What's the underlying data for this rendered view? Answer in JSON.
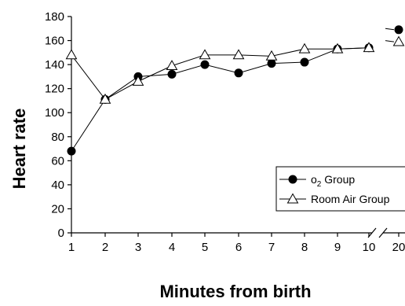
{
  "chart_data": {
    "type": "line",
    "xlabel": "Minutes from birth",
    "ylabel": "Heart rate",
    "x": [
      "1",
      "2",
      "3",
      "4",
      "5",
      "6",
      "7",
      "8",
      "9",
      "10",
      "20"
    ],
    "ylim": [
      0,
      180
    ],
    "yticks": [
      0,
      20,
      40,
      60,
      80,
      100,
      120,
      140,
      160,
      180
    ],
    "axis_break": "between 10 and 20",
    "grid": false,
    "legend_position": "right",
    "series": [
      {
        "name_prefix": "o",
        "name_subscript": "2",
        "name_suffix": " Group",
        "marker": "filled-circle",
        "values": [
          68,
          111,
          130,
          132,
          140,
          133,
          141,
          142,
          153,
          154,
          169
        ]
      },
      {
        "name": "Room Air Group",
        "marker": "open-triangle",
        "values": [
          148,
          111,
          126,
          139,
          148,
          148,
          147,
          153,
          153,
          154,
          159
        ]
      }
    ]
  }
}
